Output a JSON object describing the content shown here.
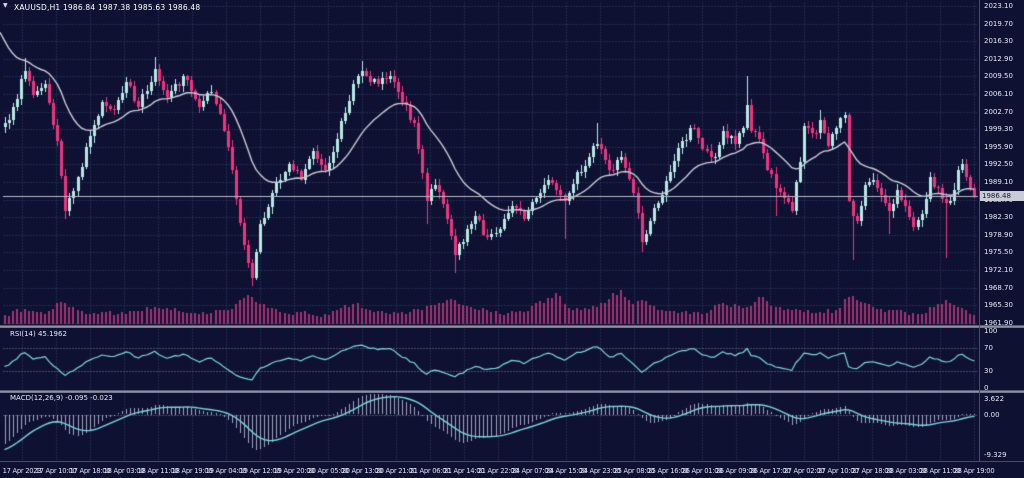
{
  "window": {
    "marker": "▼",
    "title": "XAUUSD,H1  1986.84 1987.38 1985.63 1986.48",
    "symbol": "XAUUSD",
    "timeframe": "H1",
    "ohlc": {
      "open": "1986.84",
      "high": "1987.38",
      "low": "1985.63",
      "close": "1986.48"
    }
  },
  "colors": {
    "background": "#0e1132",
    "grid": "#39436f",
    "level_line": "#80859c",
    "bull": "#b7e9e5",
    "bear": "#f03380",
    "volume": "#a23371",
    "ma_line": "#c9ccd8",
    "indicator_line": "#79d7e1",
    "histogram": "#c3c8dd",
    "axis_text": "#e5e9f5",
    "price_line": "#b9bcc9",
    "badge_bg": "#c9cbd6",
    "badge_text": "#14172e"
  },
  "chart_data": {
    "type": "candlestick",
    "symbol": "XAUUSD",
    "timeframe": "H1",
    "title": "XAUUSD,H1  1986.84 1987.38 1985.63 1986.48",
    "current_price": 1986.48,
    "current_price_label": "1986.48",
    "price_axis": {
      "top": 2023.1,
      "step": 3.4
    },
    "price_axis_labels": [
      "2023.10",
      "2019.70",
      "2016.30",
      "2012.90",
      "2009.50",
      "2006.10",
      "2002.70",
      "1999.30",
      "1995.90",
      "1992.50",
      "1989.10",
      "1985.70",
      "1982.30",
      "1978.90",
      "1975.50",
      "1972.10",
      "1968.70",
      "1965.30",
      "1961.90"
    ],
    "time_axis_labels": [
      "17 Apr 2023",
      "17 Apr 10:00",
      "17 Apr 18:00",
      "18 Apr 03:00",
      "18 Apr 11:00",
      "18 Apr 19:00",
      "19 Apr 04:00",
      "19 Apr 12:00",
      "19 Apr 20:00",
      "20 Apr 05:00",
      "20 Apr 13:00",
      "20 Apr 21:00",
      "21 Apr 06:00",
      "21 Apr 14:00",
      "21 Apr 22:00",
      "24 Apr 07:00",
      "24 Apr 15:00",
      "24 Apr 23:00",
      "25 Apr 08:00",
      "25 Apr 16:00",
      "26 Apr 01:00",
      "26 Apr 09:00",
      "26 Apr 17:00",
      "27 Apr 02:00",
      "27 Apr 10:00",
      "27 Apr 18:00",
      "28 Apr 03:00",
      "28 Apr 11:00",
      "28 Apr 19:00"
    ],
    "candles_count": 240,
    "close_anchors": [
      [
        0,
        2000.5
      ],
      [
        2,
        2003.5
      ],
      [
        5,
        2010.5
      ],
      [
        7,
        2006.0
      ],
      [
        10,
        2008.0
      ],
      [
        13,
        1997.0
      ],
      [
        15,
        1983.5
      ],
      [
        18,
        1990.0
      ],
      [
        21,
        1998.0
      ],
      [
        24,
        2004.5
      ],
      [
        27,
        2003.0
      ],
      [
        30,
        2008.5
      ],
      [
        33,
        2003.5
      ],
      [
        37,
        2011.0
      ],
      [
        40,
        2005.5
      ],
      [
        44,
        2009.5
      ],
      [
        48,
        2003.5
      ],
      [
        51,
        2006.5
      ],
      [
        54,
        1999.0
      ],
      [
        56,
        1991.5
      ],
      [
        59,
        1977.0
      ],
      [
        61,
        1970.5
      ],
      [
        63,
        1981.0
      ],
      [
        66,
        1987.0
      ],
      [
        70,
        1992.5
      ],
      [
        73,
        1989.5
      ],
      [
        76,
        1995.0
      ],
      [
        79,
        1991.5
      ],
      [
        82,
        1997.5
      ],
      [
        86,
        2008.0
      ],
      [
        88,
        2010.5
      ],
      [
        92,
        2008.0
      ],
      [
        95,
        2009.5
      ],
      [
        98,
        2004.5
      ],
      [
        101,
        2000.5
      ],
      [
        104,
        1985.5
      ],
      [
        106,
        1988.5
      ],
      [
        109,
        1982.0
      ],
      [
        111,
        1975.0
      ],
      [
        113,
        1977.5
      ],
      [
        116,
        1982.5
      ],
      [
        119,
        1978.5
      ],
      [
        122,
        1980.0
      ],
      [
        125,
        1984.5
      ],
      [
        128,
        1982.0
      ],
      [
        131,
        1986.0
      ],
      [
        134,
        1989.5
      ],
      [
        136,
        1987.5
      ],
      [
        138,
        1985.5
      ],
      [
        141,
        1991.0
      ],
      [
        144,
        1994.0
      ],
      [
        146,
        1996.5
      ],
      [
        149,
        1991.5
      ],
      [
        152,
        1994.0
      ],
      [
        155,
        1987.0
      ],
      [
        157,
        1977.5
      ],
      [
        159,
        1981.5
      ],
      [
        162,
        1986.5
      ],
      [
        164,
        1991.0
      ],
      [
        167,
        1997.0
      ],
      [
        170,
        1999.5
      ],
      [
        172,
        1995.5
      ],
      [
        175,
        1994.0
      ],
      [
        177,
        1999.0
      ],
      [
        180,
        1996.5
      ],
      [
        182,
        1999.5
      ],
      [
        183,
        2004.0
      ],
      [
        184,
        1999.0
      ],
      [
        186,
        1997.5
      ],
      [
        188,
        1991.5
      ],
      [
        190,
        1988.0
      ],
      [
        192,
        1986.0
      ],
      [
        194,
        1983.5
      ],
      [
        196,
        1993.0
      ],
      [
        197,
        2000.0
      ],
      [
        200,
        1998.5
      ],
      [
        201,
        2001.0
      ],
      [
        203,
        1996.0
      ],
      [
        205,
        1999.5
      ],
      [
        207,
        2002.0
      ],
      [
        208,
        1985.5
      ],
      [
        209,
        1982.5
      ],
      [
        210,
        1981.5
      ],
      [
        212,
        1988.5
      ],
      [
        214,
        1989.5
      ],
      [
        216,
        1986.5
      ],
      [
        218,
        1983.5
      ],
      [
        220,
        1987.5
      ],
      [
        222,
        1984.5
      ],
      [
        224,
        1980.5
      ],
      [
        226,
        1983.0
      ],
      [
        228,
        1990.0
      ],
      [
        230,
        1988.0
      ],
      [
        232,
        1985.0
      ],
      [
        234,
        1987.5
      ],
      [
        235,
        1991.5
      ],
      [
        236,
        1992.5
      ],
      [
        237,
        1990.0
      ],
      [
        238,
        1988.0
      ],
      [
        239,
        1986.48
      ]
    ],
    "wick_spikes": {
      "high": [
        [
          5,
          2013.0
        ],
        [
          37,
          2013.2
        ],
        [
          88,
          2012.5
        ],
        [
          146,
          2000.5
        ],
        [
          183,
          2009.5
        ],
        [
          201,
          2003.0
        ]
      ],
      "low": [
        [
          15,
          1982.0
        ],
        [
          61,
          1969.0
        ],
        [
          104,
          1981.0
        ],
        [
          111,
          1971.5
        ],
        [
          138,
          1978.0
        ],
        [
          157,
          1975.5
        ],
        [
          190,
          1982.5
        ],
        [
          209,
          1974.0
        ],
        [
          218,
          1979.0
        ],
        [
          232,
          1974.5
        ]
      ]
    },
    "volume_anchors": [
      [
        0,
        0.25
      ],
      [
        5,
        0.45
      ],
      [
        10,
        0.3
      ],
      [
        14,
        0.65
      ],
      [
        16,
        0.5
      ],
      [
        20,
        0.3
      ],
      [
        25,
        0.35
      ],
      [
        30,
        0.3
      ],
      [
        37,
        0.5
      ],
      [
        44,
        0.35
      ],
      [
        50,
        0.3
      ],
      [
        56,
        0.45
      ],
      [
        60,
        0.85
      ],
      [
        63,
        0.6
      ],
      [
        68,
        0.35
      ],
      [
        75,
        0.3
      ],
      [
        80,
        0.25
      ],
      [
        86,
        0.6
      ],
      [
        90,
        0.4
      ],
      [
        95,
        0.3
      ],
      [
        100,
        0.35
      ],
      [
        105,
        0.55
      ],
      [
        111,
        0.7
      ],
      [
        116,
        0.45
      ],
      [
        122,
        0.3
      ],
      [
        128,
        0.35
      ],
      [
        134,
        0.75
      ],
      [
        136,
        0.9
      ],
      [
        140,
        0.4
      ],
      [
        146,
        0.5
      ],
      [
        152,
        1.0
      ],
      [
        155,
        0.6
      ],
      [
        157,
        0.7
      ],
      [
        162,
        0.4
      ],
      [
        167,
        0.35
      ],
      [
        172,
        0.3
      ],
      [
        176,
        0.6
      ],
      [
        178,
        0.55
      ],
      [
        183,
        0.5
      ],
      [
        186,
        0.8
      ],
      [
        190,
        0.5
      ],
      [
        196,
        0.4
      ],
      [
        201,
        0.35
      ],
      [
        205,
        0.4
      ],
      [
        208,
        0.8
      ],
      [
        210,
        0.7
      ],
      [
        214,
        0.5
      ],
      [
        218,
        0.4
      ],
      [
        222,
        0.35
      ],
      [
        226,
        0.3
      ],
      [
        230,
        0.6
      ],
      [
        232,
        0.7
      ],
      [
        235,
        0.5
      ],
      [
        238,
        0.3
      ],
      [
        239,
        0.25
      ]
    ],
    "noise": {
      "seed": 7,
      "close_amp": 0.9,
      "wick_base": 0.25,
      "wick_var": 1.1
    },
    "moving_average": {
      "period": 21,
      "seed_value": 2018
    },
    "indicators": [
      {
        "name": "RSI",
        "params": "14",
        "label": "RSI(14) 45.1962",
        "current": 45.1962,
        "levels": [
          70,
          30
        ],
        "scale_labels": [
          "100",
          "70",
          "30",
          "0"
        ],
        "scale_values": [
          100,
          70,
          30,
          0
        ],
        "range": [
          0,
          100
        ]
      },
      {
        "name": "MACD",
        "params": "12,26,9",
        "label": "MACD(12,26,9) -0.095 -0.023",
        "values": [
          -0.095,
          -0.023
        ],
        "scale_labels": [
          "3.622",
          "0.00",
          "-9.329"
        ],
        "scale_values": [
          3.622,
          0,
          -9.329
        ],
        "range": [
          -9.329,
          3.622
        ]
      }
    ]
  }
}
